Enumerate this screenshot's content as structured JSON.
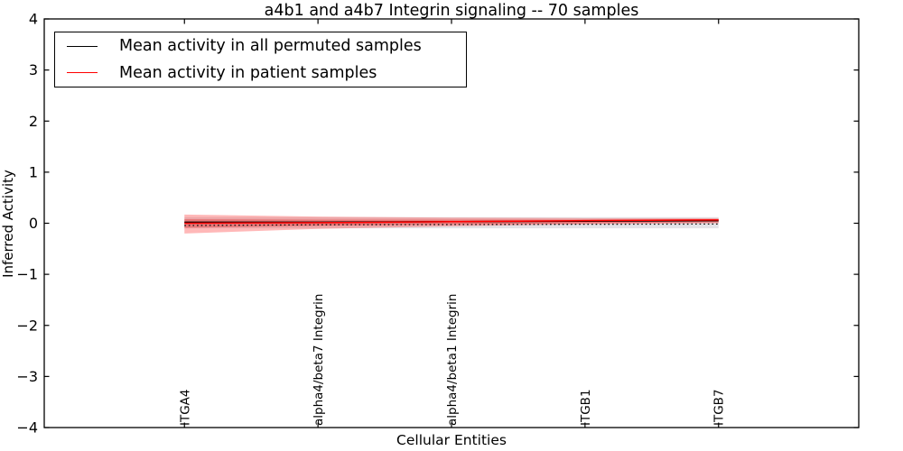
{
  "title": "a4b1 and a4b7 Integrin signaling -- 70 samples",
  "chart_data": {
    "type": "line",
    "title": "a4b1 and a4b7 Integrin signaling -- 70 samples",
    "xlabel": "Cellular Entities",
    "ylabel": "Inferred Activity",
    "categories": [
      "ITGA4",
      "alpha4/beta7 Integrin",
      "alpha4/beta1 Integrin",
      "ITGB1",
      "ITGB7"
    ],
    "xlim": [
      -1.05,
      5.05
    ],
    "ylim": [
      -4,
      4
    ],
    "yticks": [
      -4,
      -3,
      -2,
      -1,
      0,
      1,
      2,
      3,
      4
    ],
    "grid": false,
    "legend_position": "upper left",
    "axis_color": "#000000",
    "bands": [
      {
        "name": "permuted-samples-std-band",
        "color": "#9999aa",
        "opacity": 0.28,
        "upper": [
          0.12,
          0.12,
          0.12,
          0.12,
          0.12
        ],
        "lower": [
          -0.1,
          -0.1,
          -0.1,
          -0.1,
          -0.1
        ]
      },
      {
        "name": "patient-samples-outer-band",
        "color": "#ff3333",
        "opacity": 0.35,
        "upper": [
          0.17,
          0.13,
          0.11,
          0.1,
          0.1
        ],
        "lower": [
          -0.2,
          -0.11,
          -0.06,
          -0.02,
          0.0
        ]
      },
      {
        "name": "patient-samples-inner-band",
        "color": "#e04040",
        "opacity": 0.45,
        "upper": [
          0.08,
          0.07,
          0.07,
          0.07,
          0.08
        ],
        "lower": [
          -0.09,
          -0.05,
          -0.02,
          0.0,
          0.02
        ]
      }
    ],
    "series": [
      {
        "name": "Mean activity in all permuted samples",
        "color": "#000000",
        "style": "solid",
        "width": 1.5,
        "values": [
          0.02,
          0.02,
          0.03,
          0.04,
          0.05
        ]
      },
      {
        "name": "Mean activity in patient samples",
        "color": "#ff0000",
        "style": "solid",
        "width": 1.5,
        "values": [
          0.0,
          0.01,
          0.03,
          0.05,
          0.065
        ]
      },
      {
        "name": "black-dotted-line",
        "color": "#111111",
        "style": "dotted",
        "width": 1.3,
        "values": [
          -0.045,
          -0.03,
          -0.025,
          -0.02,
          -0.015
        ]
      }
    ]
  }
}
